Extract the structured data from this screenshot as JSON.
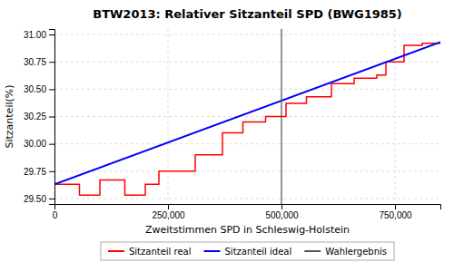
{
  "chart_data": {
    "type": "line",
    "title": "BTW2013: Relativer Sitzanteil SPD (BWG1985)",
    "x_label": "Zweitstimmen SPD in Schleswig-Holstein",
    "y_label": "Sitzanteil(%)",
    "xlim": [
      0,
      850000
    ],
    "ylim": [
      29.45,
      31.05
    ],
    "xticks": [
      0,
      {
        "value": 250000,
        "label": "250,000"
      },
      {
        "value": 500000,
        "label": "500,000"
      },
      {
        "value": 750000,
        "label": "750,000"
      }
    ],
    "yticks": [
      {
        "value": 29.5,
        "label": "29.50"
      },
      29.75,
      {
        "value": 30.0,
        "label": "30.00"
      },
      30.25,
      {
        "value": 30.5,
        "label": "30.50"
      },
      30.75,
      {
        "value": 31.0,
        "label": "31.00"
      }
    ],
    "grid": true,
    "legend": "bottom",
    "series": [
      {
        "name": "Sitzanteil real",
        "type": "line",
        "color": "#ff0000",
        "x": [
          0,
          55000,
          55000,
          100000,
          100000,
          155000,
          155000,
          200000,
          200000,
          230000,
          230000,
          310000,
          310000,
          370000,
          370000,
          415000,
          415000,
          465000,
          465000,
          510000,
          510000,
          555000,
          555000,
          610000,
          610000,
          660000,
          660000,
          710000,
          710000,
          730000,
          730000,
          770000,
          770000,
          810000,
          810000,
          850000
        ],
        "values": [
          29.63,
          29.63,
          29.53,
          29.53,
          29.67,
          29.67,
          29.53,
          29.53,
          29.63,
          29.63,
          29.75,
          29.75,
          29.9,
          29.9,
          30.1,
          30.1,
          30.2,
          30.2,
          30.25,
          30.25,
          30.37,
          30.37,
          30.43,
          30.43,
          30.55,
          30.55,
          30.6,
          30.6,
          30.63,
          30.63,
          30.75,
          30.75,
          30.9,
          30.9,
          30.92,
          30.92
        ]
      },
      {
        "name": "Sitzanteil ideal",
        "type": "line",
        "color": "#0000ff",
        "x": [
          0,
          850000
        ],
        "values": [
          29.63,
          30.93
        ]
      },
      {
        "name": "Wahlergebnis",
        "type": "vline",
        "color": "#555555",
        "x": [
          500000
        ]
      }
    ]
  }
}
